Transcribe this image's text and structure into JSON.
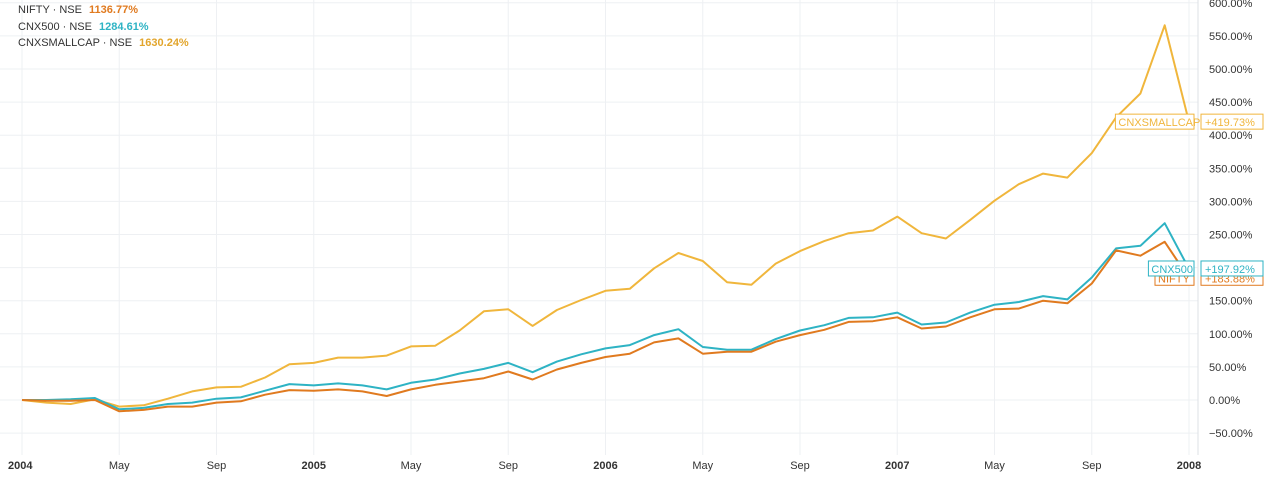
{
  "chart_data": {
    "type": "line",
    "title": "",
    "xlabel": "",
    "ylabel": "",
    "ylim": [
      -50,
      600
    ],
    "xlim": [
      0,
      48
    ],
    "y_ticks": [
      {
        "value": 600,
        "label": "600.00%"
      },
      {
        "value": 550,
        "label": "550.00%"
      },
      {
        "value": 500,
        "label": "500.00%"
      },
      {
        "value": 450,
        "label": "450.00%"
      },
      {
        "value": 400,
        "label": "400.00%"
      },
      {
        "value": 350,
        "label": "350.00%"
      },
      {
        "value": 300,
        "label": "300.00%"
      },
      {
        "value": 250,
        "label": "250.00%"
      },
      {
        "value": 200,
        "label": "200.00%"
      },
      {
        "value": 150,
        "label": "150.00%"
      },
      {
        "value": 100,
        "label": "100.00%"
      },
      {
        "value": 50,
        "label": "50.00%"
      },
      {
        "value": 0,
        "label": "0.00%"
      },
      {
        "value": -50,
        "label": "−50.00%"
      }
    ],
    "x_ticks": [
      {
        "value": 0,
        "label": "2004",
        "bold": true
      },
      {
        "value": 4,
        "label": "May",
        "bold": false
      },
      {
        "value": 8,
        "label": "Sep",
        "bold": false
      },
      {
        "value": 12,
        "label": "2005",
        "bold": true
      },
      {
        "value": 16,
        "label": "May",
        "bold": false
      },
      {
        "value": 20,
        "label": "Sep",
        "bold": false
      },
      {
        "value": 24,
        "label": "2006",
        "bold": true
      },
      {
        "value": 28,
        "label": "May",
        "bold": false
      },
      {
        "value": 32,
        "label": "Sep",
        "bold": false
      },
      {
        "value": 36,
        "label": "2007",
        "bold": true
      },
      {
        "value": 40,
        "label": "May",
        "bold": false
      },
      {
        "value": 44,
        "label": "Sep",
        "bold": false
      },
      {
        "value": 48,
        "label": "2008",
        "bold": true
      }
    ],
    "legend_position": "top-left",
    "series": [
      {
        "name": "NIFTY · NSE",
        "legend_value": "1136.77%",
        "end_name": "NIFTY",
        "end_value": "+183.88%",
        "last_value": 183.88,
        "color": "#e07a1f",
        "x": [
          0,
          1,
          2,
          3,
          4,
          5,
          6,
          7,
          8,
          9,
          10,
          11,
          12,
          13,
          14,
          15,
          16,
          17,
          18,
          19,
          20,
          21,
          22,
          23,
          24,
          25,
          26,
          27,
          28,
          29,
          30,
          31,
          32,
          33,
          34,
          35,
          36,
          37,
          38,
          39,
          40,
          41,
          42,
          43,
          44,
          45,
          46,
          47,
          48
        ],
        "values": [
          0,
          -1,
          -1,
          0,
          -17,
          -15,
          -10,
          -10,
          -4,
          -2,
          8,
          15,
          14,
          16,
          13,
          6,
          16,
          23,
          28,
          33,
          43,
          31,
          46,
          56,
          65,
          70,
          87,
          93,
          70,
          73,
          73,
          88,
          98,
          106,
          118,
          119,
          125,
          108,
          111,
          125,
          137,
          138,
          150,
          146,
          176,
          226,
          218,
          239,
          184
        ]
      },
      {
        "name": "CNX500 · NSE",
        "legend_value": "1284.61%",
        "end_name": "CNX500",
        "end_value": "+197.92%",
        "last_value": 197.92,
        "color": "#2eb3c4",
        "x": [
          0,
          1,
          2,
          3,
          4,
          5,
          6,
          7,
          8,
          9,
          10,
          11,
          12,
          13,
          14,
          15,
          16,
          17,
          18,
          19,
          20,
          21,
          22,
          23,
          24,
          25,
          26,
          27,
          28,
          29,
          30,
          31,
          32,
          33,
          34,
          35,
          36,
          37,
          38,
          39,
          40,
          41,
          42,
          43,
          44,
          45,
          46,
          47,
          48
        ],
        "values": [
          0,
          0,
          1,
          3,
          -14,
          -12,
          -6,
          -4,
          2,
          4,
          14,
          24,
          22,
          25,
          22,
          16,
          26,
          31,
          40,
          47,
          56,
          42,
          58,
          69,
          78,
          83,
          98,
          107,
          80,
          76,
          76,
          92,
          105,
          113,
          124,
          125,
          132,
          114,
          117,
          132,
          144,
          148,
          157,
          152,
          185,
          229,
          233,
          267,
          198
        ]
      },
      {
        "name": "CNXSMALLCAP · NSE",
        "legend_value": "1630.24%",
        "end_name": "CNXSMALLCAP",
        "end_value": "+419.73%",
        "last_value": 419.73,
        "color": "#f0b63c",
        "x": [
          0,
          1,
          2,
          3,
          4,
          5,
          6,
          7,
          8,
          9,
          10,
          11,
          12,
          13,
          14,
          15,
          16,
          17,
          18,
          19,
          20,
          21,
          22,
          23,
          24,
          25,
          26,
          27,
          28,
          29,
          30,
          31,
          32,
          33,
          34,
          35,
          36,
          37,
          38,
          39,
          40,
          41,
          42,
          43,
          44,
          45,
          46,
          47,
          48
        ],
        "values": [
          0,
          -4,
          -6,
          1,
          -10,
          -8,
          2,
          13,
          19,
          20,
          34,
          54,
          56,
          64,
          64,
          67,
          81,
          82,
          105,
          134,
          137,
          112,
          136,
          151,
          165,
          168,
          199,
          222,
          210,
          178,
          174,
          206,
          225,
          240,
          252,
          256,
          277,
          252,
          244,
          272,
          301,
          326,
          342,
          336,
          373,
          427,
          463,
          566,
          420
        ]
      }
    ]
  }
}
